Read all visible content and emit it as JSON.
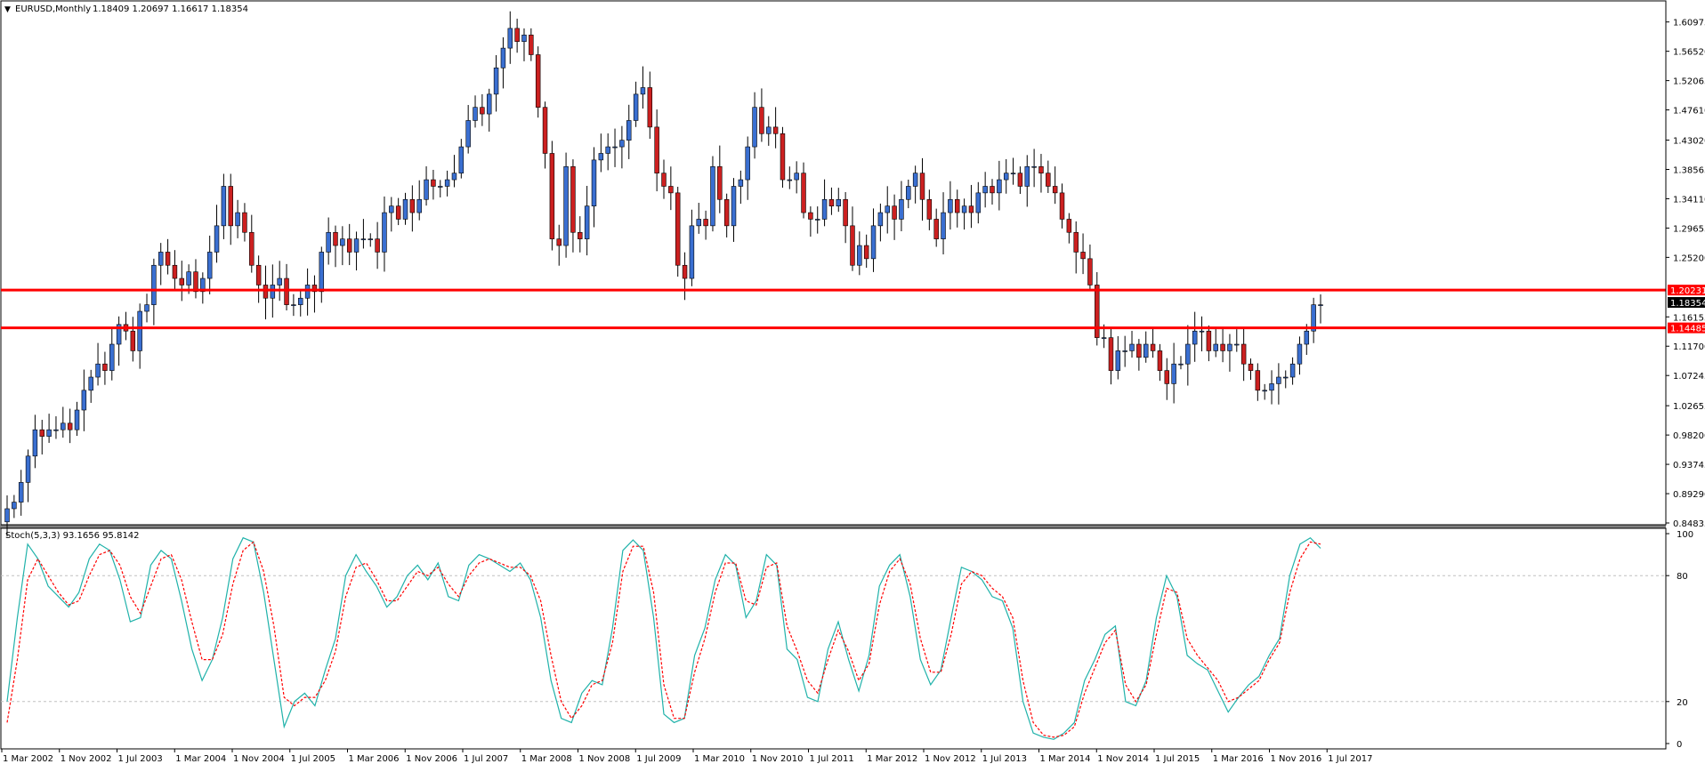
{
  "header": {
    "collapse_icon": "triangle-down-icon",
    "symbol": "EURUSD,Monthly",
    "ohlc": "1.18409 1.20697 1.16617 1.18354"
  },
  "indicator": {
    "label": "Stoch(5,3,3) 93.1656 95.8142"
  },
  "colors": {
    "bull": "#3a6fd1",
    "bear": "#cc2020",
    "wick": "#000000",
    "hline": "#ff0000",
    "stoch_main": "#20b2aa",
    "stoch_signal": "#ff0000",
    "price_badge_bg": "#000000",
    "hline_badge_bg": "#ff0000"
  },
  "chart_data": [
    {
      "type": "candlestick",
      "title": "EURUSD,Monthly",
      "ylim": [
        0.84835,
        1.6188
      ],
      "y_ticks": [
        "1.60975",
        "1.56520",
        "1.52065",
        "1.47610",
        "1.43020",
        "1.38565",
        "1.34110",
        "1.29655",
        "1.25200",
        "1.16155",
        "1.11700",
        "1.07245",
        "1.02655",
        "0.98200",
        "0.93745",
        "0.89290",
        "0.84835"
      ],
      "x_ticks": [
        "1 Mar 2002",
        "1 Nov 2002",
        "1 Jul 2003",
        "1 Mar 2004",
        "1 Nov 2004",
        "1 Jul 2005",
        "1 Mar 2006",
        "1 Nov 2006",
        "1 Jul 2007",
        "1 Mar 2008",
        "1 Nov 2008",
        "1 Jul 2009",
        "1 Mar 2010",
        "1 Nov 2010",
        "1 Jul 2011",
        "1 Mar 2012",
        "1 Nov 2012",
        "1 Jul 2013",
        "1 Mar 2014",
        "1 Nov 2014",
        "1 Jul 2015",
        "1 Mar 2016",
        "1 Nov 2016",
        "1 Jul 2017"
      ],
      "current_price": "1.18354",
      "horizontal_lines": [
        {
          "value": 1.20231,
          "label": "1.20231"
        },
        {
          "value": 1.14485,
          "label": "1.14485"
        }
      ],
      "close": [
        0.87,
        0.88,
        0.91,
        0.95,
        0.99,
        0.98,
        0.99,
        0.99,
        1.0,
        0.99,
        1.02,
        1.05,
        1.07,
        1.09,
        1.08,
        1.12,
        1.15,
        1.14,
        1.11,
        1.17,
        1.18,
        1.24,
        1.26,
        1.24,
        1.22,
        1.21,
        1.23,
        1.2,
        1.22,
        1.26,
        1.3,
        1.36,
        1.3,
        1.32,
        1.29,
        1.24,
        1.21,
        1.19,
        1.21,
        1.22,
        1.18,
        1.18,
        1.19,
        1.21,
        1.2,
        1.26,
        1.29,
        1.27,
        1.28,
        1.26,
        1.28,
        1.28,
        1.28,
        1.26,
        1.32,
        1.33,
        1.31,
        1.34,
        1.32,
        1.34,
        1.37,
        1.36,
        1.36,
        1.37,
        1.38,
        1.42,
        1.46,
        1.48,
        1.47,
        1.5,
        1.54,
        1.57,
        1.6,
        1.58,
        1.59,
        1.56,
        1.48,
        1.41,
        1.28,
        1.27,
        1.39,
        1.29,
        1.28,
        1.33,
        1.4,
        1.41,
        1.42,
        1.42,
        1.43,
        1.46,
        1.5,
        1.51,
        1.45,
        1.38,
        1.36,
        1.35,
        1.24,
        1.22,
        1.3,
        1.31,
        1.3,
        1.39,
        1.34,
        1.3,
        1.36,
        1.37,
        1.42,
        1.48,
        1.44,
        1.45,
        1.44,
        1.37,
        1.37,
        1.38,
        1.32,
        1.31,
        1.31,
        1.34,
        1.33,
        1.34,
        1.3,
        1.24,
        1.27,
        1.25,
        1.3,
        1.32,
        1.33,
        1.31,
        1.34,
        1.36,
        1.38,
        1.34,
        1.31,
        1.28,
        1.32,
        1.34,
        1.32,
        1.33,
        1.32,
        1.35,
        1.36,
        1.35,
        1.37,
        1.38,
        1.38,
        1.36,
        1.39,
        1.39,
        1.38,
        1.36,
        1.35,
        1.31,
        1.29,
        1.26,
        1.25,
        1.21,
        1.13,
        1.13,
        1.08,
        1.11,
        1.11,
        1.12,
        1.1,
        1.12,
        1.11,
        1.08,
        1.06,
        1.09,
        1.09,
        1.12,
        1.14,
        1.14,
        1.11,
        1.12,
        1.11,
        1.12,
        1.12,
        1.09,
        1.08,
        1.05,
        1.05,
        1.06,
        1.07,
        1.07,
        1.09,
        1.12,
        1.14,
        1.18,
        1.18
      ],
      "stoch_main": [
        20,
        60,
        95,
        88,
        75,
        70,
        65,
        72,
        88,
        95,
        92,
        78,
        58,
        60,
        85,
        92,
        88,
        68,
        45,
        30,
        40,
        60,
        88,
        98,
        96,
        72,
        40,
        8,
        20,
        24,
        18,
        35,
        50,
        80,
        90,
        82,
        75,
        65,
        70,
        80,
        85,
        78,
        86,
        70,
        68,
        85,
        90,
        88,
        85,
        82,
        86,
        78,
        60,
        30,
        12,
        10,
        24,
        30,
        28,
        55,
        92,
        97,
        92,
        60,
        14,
        10,
        12,
        42,
        55,
        78,
        90,
        85,
        60,
        68,
        90,
        85,
        45,
        40,
        22,
        20,
        45,
        58,
        40,
        25,
        42,
        75,
        85,
        90,
        70,
        40,
        28,
        35,
        60,
        84,
        82,
        78,
        70,
        68,
        55,
        20,
        5,
        3,
        2,
        5,
        10,
        30,
        40,
        52,
        56,
        20,
        18,
        30,
        60,
        80,
        70,
        42,
        38,
        35,
        25,
        15,
        22,
        28,
        32,
        42,
        50,
        80,
        95,
        98,
        93
      ],
      "stoch_signal": [
        10,
        40,
        78,
        88,
        80,
        72,
        66,
        68,
        80,
        90,
        92,
        85,
        70,
        62,
        75,
        88,
        90,
        78,
        58,
        40,
        40,
        52,
        76,
        92,
        96,
        82,
        56,
        22,
        18,
        22,
        22,
        30,
        44,
        70,
        84,
        86,
        78,
        68,
        68,
        75,
        82,
        80,
        84,
        76,
        70,
        80,
        86,
        88,
        86,
        84,
        84,
        80,
        68,
        42,
        20,
        12,
        18,
        28,
        30,
        48,
        82,
        94,
        94,
        72,
        28,
        12,
        12,
        34,
        50,
        72,
        86,
        86,
        68,
        66,
        84,
        86,
        56,
        44,
        30,
        24,
        40,
        54,
        44,
        30,
        38,
        66,
        82,
        88,
        76,
        50,
        34,
        34,
        52,
        76,
        82,
        80,
        74,
        70,
        60,
        30,
        10,
        4,
        3,
        4,
        8,
        24,
        36,
        48,
        54,
        28,
        20,
        28,
        52,
        74,
        72,
        50,
        42,
        36,
        30,
        20,
        22,
        26,
        30,
        40,
        48,
        72,
        88,
        96,
        95
      ],
      "ylim_indicator": [
        0,
        100
      ],
      "y_ticks_indicator": [
        "100",
        "80",
        "20",
        "0"
      ]
    }
  ]
}
